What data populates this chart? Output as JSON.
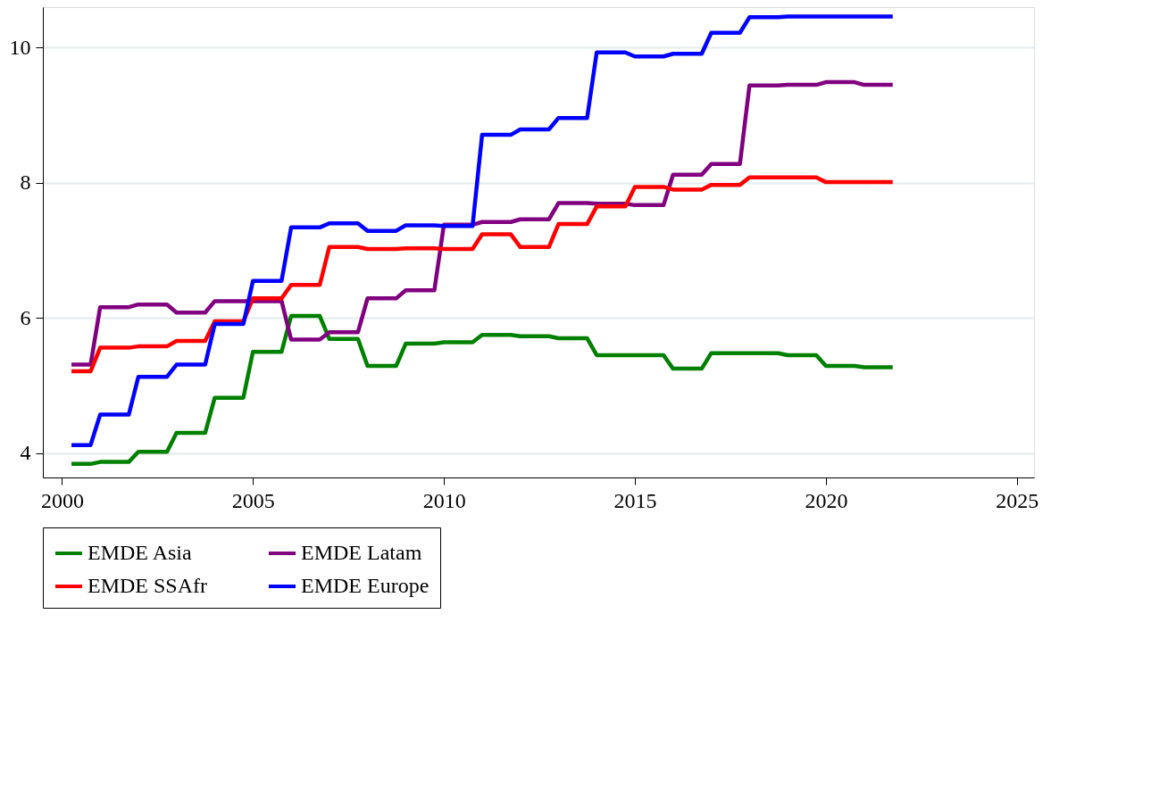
{
  "chart_data": {
    "type": "line",
    "xlim": [
      1999.5,
      2025.45
    ],
    "xticks": [
      2000,
      2005,
      2010,
      2015,
      2020,
      2025
    ],
    "ylim": [
      3.64,
      10.6
    ],
    "yticks": [
      4,
      6,
      8,
      10
    ],
    "grid": "y",
    "legend": "bottom",
    "marker": "none",
    "line_style": "solid",
    "x": [
      2000.25,
      2000.75,
      2001,
      2001.75,
      2002,
      2002.75,
      2003,
      2003.75,
      2004,
      2004.75,
      2005,
      2005.75,
      2006,
      2006.75,
      2007,
      2007.75,
      2008,
      2008.75,
      2009,
      2009.75,
      2010,
      2010.75,
      2011,
      2011.75,
      2012,
      2012.75,
      2013,
      2013.75,
      2014,
      2014.75,
      2015,
      2015.75,
      2016,
      2016.75,
      2017,
      2017.75,
      2018,
      2018.75,
      2019,
      2019.75,
      2020,
      2020.75,
      2021,
      2021.75
    ],
    "series": [
      {
        "name": "EMDE Asia",
        "color": "#008000",
        "values": [
          3.84,
          3.84,
          3.87,
          3.87,
          4.02,
          4.02,
          4.3,
          4.3,
          4.82,
          4.82,
          5.5,
          5.5,
          6.03,
          6.03,
          5.69,
          5.69,
          5.29,
          5.29,
          5.62,
          5.62,
          5.64,
          5.64,
          5.75,
          5.75,
          5.73,
          5.73,
          5.7,
          5.7,
          5.45,
          5.45,
          5.45,
          5.45,
          5.25,
          5.25,
          5.48,
          5.48,
          5.48,
          5.48,
          5.45,
          5.45,
          5.29,
          5.29,
          5.27,
          5.27
        ]
      },
      {
        "name": "EMDE Latam",
        "color": "#800080",
        "values": [
          5.31,
          5.31,
          6.16,
          6.16,
          6.2,
          6.2,
          6.08,
          6.08,
          6.25,
          6.25,
          6.25,
          6.25,
          5.68,
          5.68,
          5.79,
          5.79,
          6.29,
          6.29,
          6.41,
          6.41,
          7.38,
          7.38,
          7.42,
          7.42,
          7.46,
          7.46,
          7.7,
          7.7,
          7.69,
          7.69,
          7.67,
          7.67,
          8.12,
          8.12,
          8.28,
          8.28,
          9.44,
          9.44,
          9.45,
          9.45,
          9.49,
          9.49,
          9.45,
          9.45
        ]
      },
      {
        "name": "EMDE SSAfr",
        "color": "#ff0000",
        "values": [
          5.21,
          5.21,
          5.56,
          5.56,
          5.58,
          5.58,
          5.66,
          5.66,
          5.95,
          5.95,
          6.29,
          6.29,
          6.49,
          6.49,
          7.05,
          7.05,
          7.02,
          7.02,
          7.03,
          7.03,
          7.02,
          7.02,
          7.24,
          7.24,
          7.05,
          7.05,
          7.39,
          7.39,
          7.65,
          7.65,
          7.94,
          7.94,
          7.9,
          7.9,
          7.97,
          7.97,
          8.08,
          8.08,
          8.08,
          8.08,
          8.01,
          8.01,
          8.01,
          8.01
        ]
      },
      {
        "name": "EMDE Europe",
        "color": "#0000ff",
        "values": [
          4.12,
          4.12,
          4.57,
          4.57,
          5.13,
          5.13,
          5.31,
          5.31,
          5.91,
          5.91,
          6.55,
          6.55,
          7.34,
          7.34,
          7.4,
          7.4,
          7.29,
          7.29,
          7.37,
          7.37,
          7.36,
          7.36,
          8.71,
          8.71,
          8.79,
          8.79,
          8.96,
          8.96,
          9.93,
          9.93,
          9.87,
          9.87,
          9.91,
          9.91,
          10.22,
          10.22,
          10.45,
          10.45,
          10.46,
          10.46,
          10.46,
          10.46,
          10.46,
          10.46
        ]
      }
    ]
  }
}
